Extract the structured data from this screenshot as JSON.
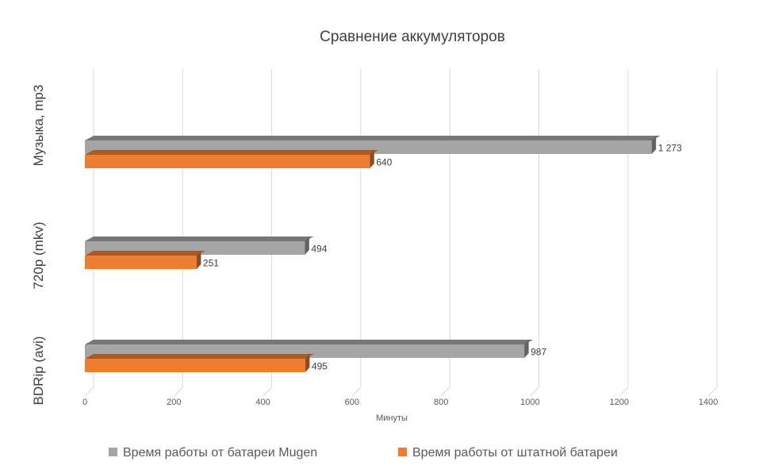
{
  "chart_data": {
    "type": "bar",
    "orientation": "horizontal",
    "style": "3d",
    "title": "Сравнение аккумуляторов",
    "xlabel": "Минуты",
    "ylabel": "",
    "xlim": [
      0,
      1400
    ],
    "x_ticks": [
      "0",
      "200",
      "400",
      "600",
      "800",
      "1000",
      "1200",
      "1400"
    ],
    "grid": true,
    "legend_position": "bottom",
    "categories": [
      "Музыка, mp3",
      "720p (mkv)",
      "BDRip (avi)"
    ],
    "series": [
      {
        "name": "Время работы от батареи Mugen",
        "color": "#a5a5a5",
        "values": [
          1273,
          494,
          987
        ],
        "labels": [
          "1 273",
          "494",
          "987"
        ]
      },
      {
        "name": "Время работы от штатной батареи",
        "color": "#ed7d31",
        "values": [
          640,
          251,
          495
        ],
        "labels": [
          "640",
          "251",
          "495"
        ]
      }
    ]
  }
}
